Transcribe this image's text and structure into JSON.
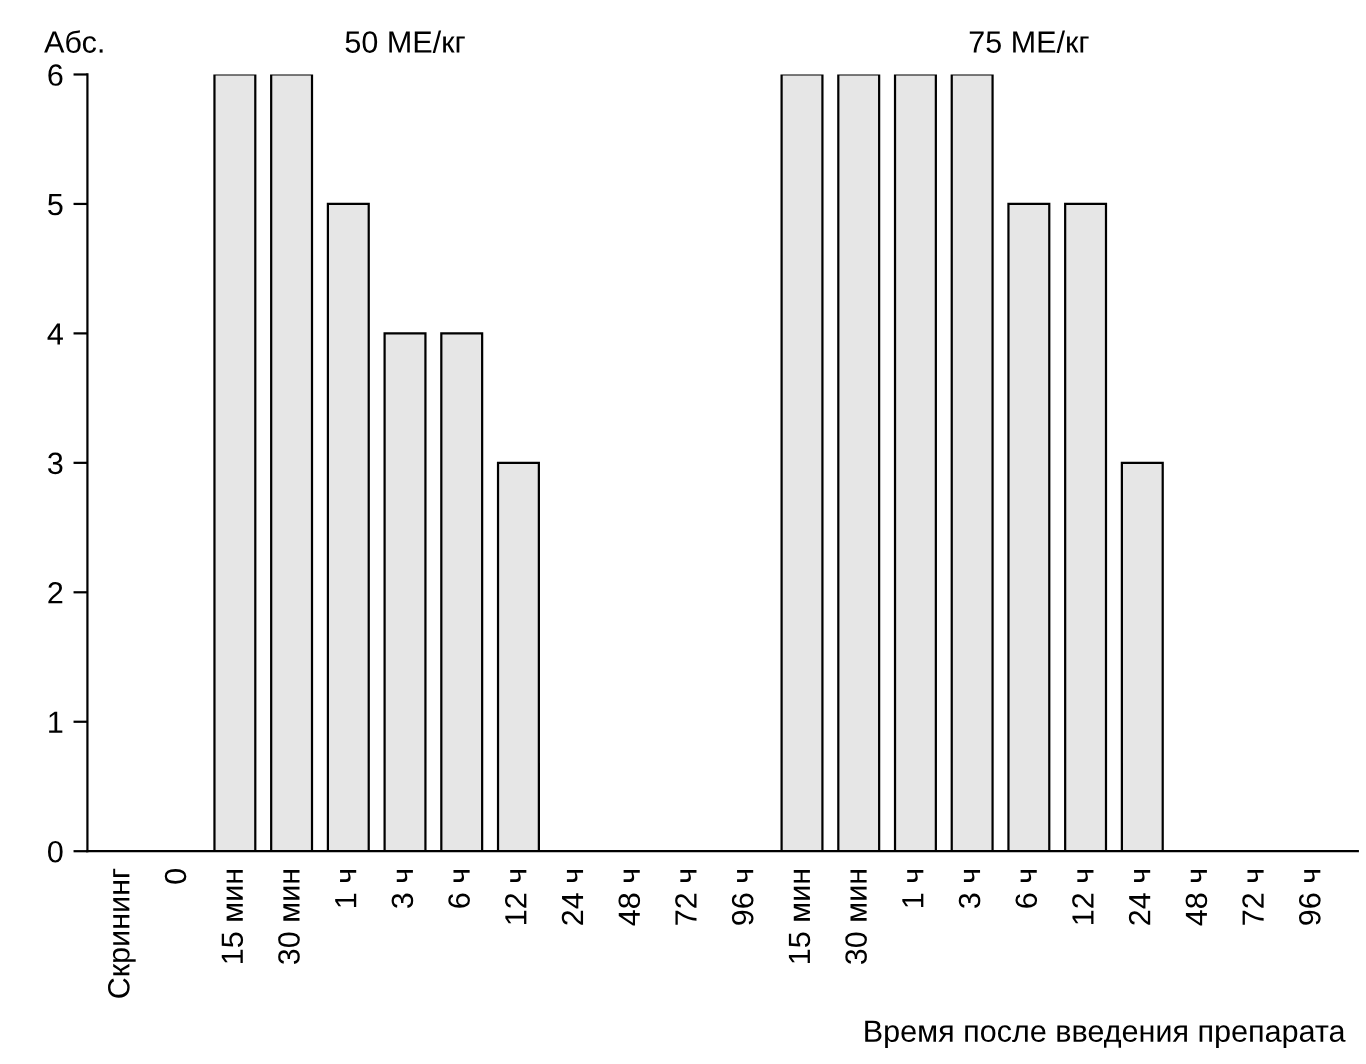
{
  "chart_data": {
    "type": "bar",
    "ylabel": "Абс.",
    "xlabel": "Время после введения препарата",
    "annotations": [
      "50 МЕ/кг",
      "75 МЕ/кг"
    ],
    "categories": [
      "Скрининг",
      "0",
      "15 мин",
      "30 мин",
      "1 ч",
      "3 ч",
      "6 ч",
      "12 ч",
      "24 ч",
      "48 ч",
      "72 ч",
      "96 ч",
      "15 мин",
      "30 мин",
      "1 ч",
      "3 ч",
      "6 ч",
      "12 ч",
      "24 ч",
      "48 ч",
      "72 ч",
      "96 ч"
    ],
    "values": [
      0,
      0,
      6,
      6,
      5,
      4,
      4,
      3,
      0,
      0,
      0,
      0,
      6,
      6,
      6,
      6,
      5,
      5,
      3,
      0,
      0,
      0
    ],
    "color": "#e6e6e6",
    "ylim": [
      0,
      6
    ],
    "yticks": [
      0,
      1,
      2,
      3,
      4,
      5,
      6
    ],
    "grid": false,
    "legend": false
  }
}
